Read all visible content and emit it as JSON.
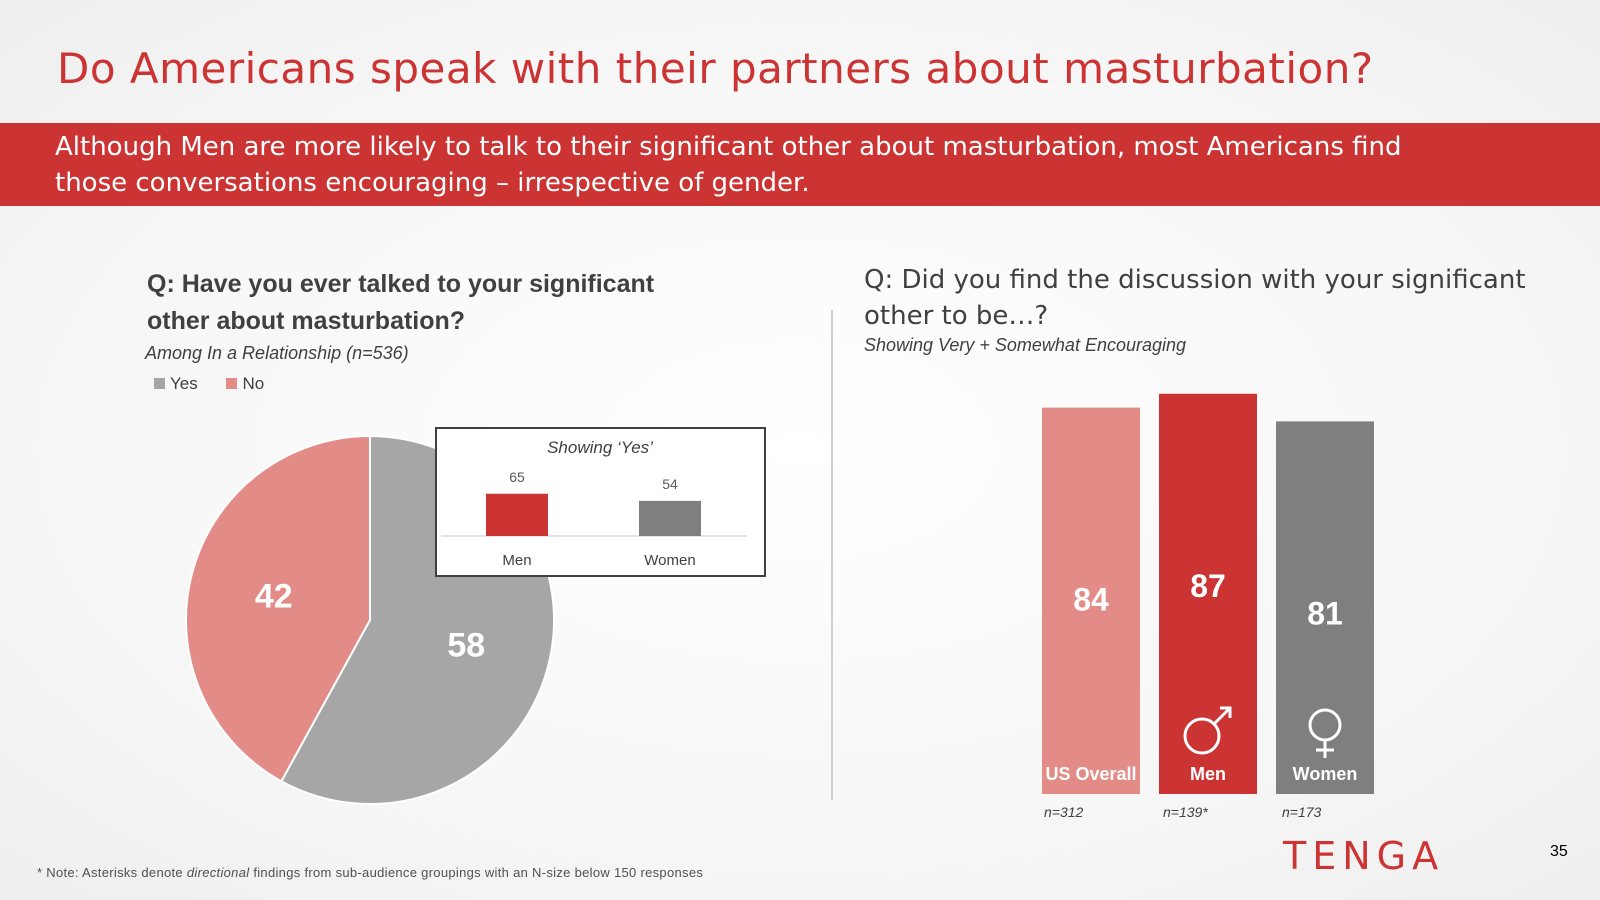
{
  "title": "Do Americans speak with their partners about masturbation?",
  "banner": "Although Men are more likely to talk to their significant other about masturbation, most Americans find those conversations encouraging – irrespective of gender.",
  "colors": {
    "accent": "#cc3333",
    "pink": "#e38b87",
    "gray_light": "#a6a6a6",
    "gray_dark": "#7f7f7f",
    "text": "#404040"
  },
  "left": {
    "question": "Q: Have you ever talked to your significant other about masturbation?",
    "subtitle": "Among In a Relationship (n=536)"
  },
  "right": {
    "question": "Q: Did you find the discussion with your significant other to be…?",
    "subtitle": "Showing Very + Somewhat Encouraging"
  },
  "chart_data": [
    {
      "type": "pie",
      "labels": [
        "Yes",
        "No"
      ],
      "values": [
        58,
        42
      ],
      "colors": [
        "#a6a6a6",
        "#e38b87"
      ],
      "legend": "top-left"
    },
    {
      "type": "bar",
      "title": "Showing ‘Yes’",
      "categories": [
        "Men",
        "Women"
      ],
      "values": [
        65,
        54
      ],
      "colors": [
        "#cc3333",
        "#7f7f7f"
      ]
    },
    {
      "type": "bar",
      "categories": [
        "US Overall",
        "Men",
        "Women"
      ],
      "values": [
        84,
        87,
        81
      ],
      "colors": [
        "#e38b87",
        "#cc3333",
        "#7f7f7f"
      ],
      "icons": [
        "",
        "male-symbol-icon",
        "female-symbol-icon"
      ],
      "n_sizes": [
        "n=312",
        "n=139*",
        "n=173"
      ]
    }
  ],
  "footnote": {
    "prefix": "* Note: Asterisks denote ",
    "emphasis": "directional",
    "suffix": " findings from sub-audience groupings with an N-size below 150 responses"
  },
  "logo": "TENGA",
  "page_number": "35"
}
